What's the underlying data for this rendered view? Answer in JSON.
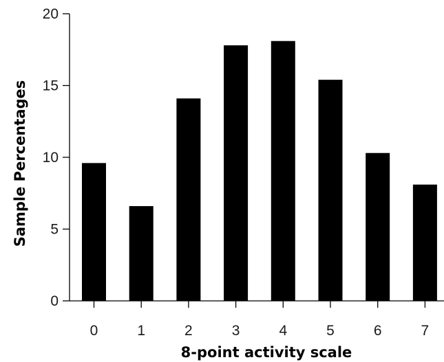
{
  "chart_data": {
    "type": "bar",
    "title": "",
    "xlabel": "8-point activity scale",
    "ylabel": "Sample Percentages",
    "categories": [
      "0",
      "1",
      "2",
      "3",
      "4",
      "5",
      "6",
      "7"
    ],
    "values": [
      9.6,
      6.6,
      14.1,
      17.8,
      18.1,
      15.4,
      10.3,
      8.1
    ],
    "yticks": [
      "0",
      "5",
      "10",
      "15",
      "20"
    ],
    "ylim": [
      0,
      20
    ],
    "grid": false,
    "legend": "none",
    "bar_color": "#000000",
    "axis_color": "#000000"
  }
}
